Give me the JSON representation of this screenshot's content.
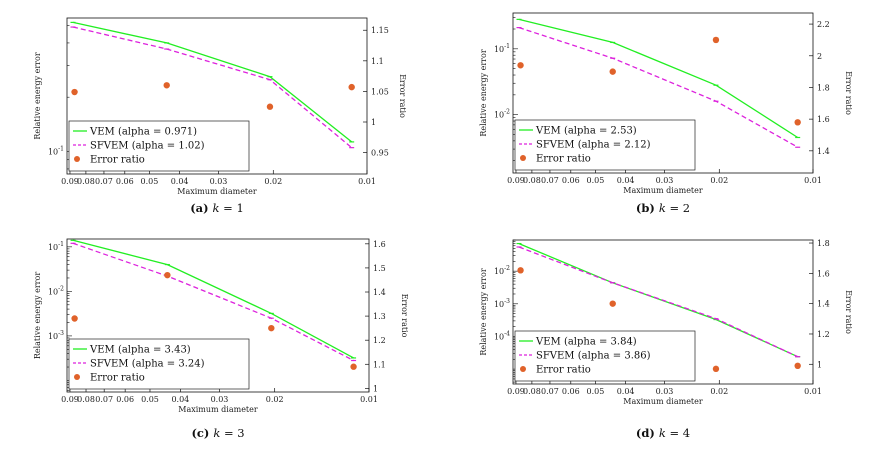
{
  "chart_data": [
    {
      "type": "line",
      "caption": {
        "letter": "(a)",
        "param": "k",
        "eq": "= 1"
      },
      "xlabel": "Maximum diameter",
      "ylabel": "Relative energy error",
      "y2label": "Error ratio",
      "x_ticks": [
        {
          "v": 0.09,
          "l": "0.09"
        },
        {
          "v": 0.08,
          "l": "0.08"
        },
        {
          "v": 0.07,
          "l": "0.07"
        },
        {
          "v": 0.06,
          "l": "0.06"
        },
        {
          "v": 0.05,
          "l": "0.05"
        },
        {
          "v": 0.04,
          "l": "0.04"
        },
        {
          "v": 0.03,
          "l": "0.03"
        },
        {
          "v": 0.02,
          "l": "0.02"
        },
        {
          "v": 0.01,
          "l": "0.01"
        }
      ],
      "xlim": [
        0.092,
        0.01
      ],
      "ylim": [
        0.075,
        0.55
      ],
      "y_ticks": [
        {
          "v": 0.1,
          "l": "10-1"
        }
      ],
      "y2lim": [
        0.915,
        1.17
      ],
      "y2_ticks": [
        {
          "v": 0.95,
          "l": "0.95"
        },
        {
          "v": 1.0,
          "l": "1"
        },
        {
          "v": 1.05,
          "l": "1.05"
        },
        {
          "v": 1.1,
          "l": "1.1"
        },
        {
          "v": 1.15,
          "l": "1.15"
        }
      ],
      "series": [
        {
          "name": "VEM (alpha = 0.971)",
          "color": "#22ee22",
          "dash": false,
          "x": [
            0.088,
            0.044,
            0.0205,
            0.0112
          ],
          "y": [
            0.52,
            0.4,
            0.26,
            0.113
          ]
        },
        {
          "name": "SFVEM (alpha = 1.02)",
          "color": "#dd22dd",
          "dash": true,
          "x": [
            0.088,
            0.044,
            0.0205,
            0.0112
          ],
          "y": [
            0.49,
            0.37,
            0.25,
            0.105
          ]
        }
      ],
      "ratio": {
        "name": "Error ratio",
        "color": "#e0622a",
        "x": [
          0.087,
          0.044,
          0.0205,
          0.0112
        ],
        "y": [
          1.049,
          1.06,
          1.025,
          1.057
        ]
      }
    },
    {
      "type": "line",
      "caption": {
        "letter": "(b)",
        "param": "k",
        "eq": "= 2"
      },
      "xlabel": "Maximum diameter",
      "ylabel": "Relative energy error",
      "y2label": "Error ratio",
      "x_ticks": [
        {
          "v": 0.09,
          "l": "0.09"
        },
        {
          "v": 0.08,
          "l": "0.08"
        },
        {
          "v": 0.07,
          "l": "0.07"
        },
        {
          "v": 0.06,
          "l": "0.06"
        },
        {
          "v": 0.05,
          "l": "0.05"
        },
        {
          "v": 0.04,
          "l": "0.04"
        },
        {
          "v": 0.03,
          "l": "0.03"
        },
        {
          "v": 0.02,
          "l": "0.02"
        },
        {
          "v": 0.01,
          "l": "0.01"
        }
      ],
      "xlim": [
        0.092,
        0.01
      ],
      "ylim": [
        0.0013,
        0.35
      ],
      "y_ticks": [
        {
          "v": 0.1,
          "l": "10-1"
        },
        {
          "v": 0.01,
          "l": "10-2"
        }
      ],
      "y2lim": [
        1.26,
        2.27
      ],
      "y2_ticks": [
        {
          "v": 1.4,
          "l": "1.4"
        },
        {
          "v": 1.6,
          "l": "1.6"
        },
        {
          "v": 1.8,
          "l": "1.8"
        },
        {
          "v": 2.0,
          "l": "2"
        },
        {
          "v": 2.2,
          "l": "2.2"
        }
      ],
      "series": [
        {
          "name": "VEM (alpha = 2.53)",
          "color": "#22ee22",
          "dash": false,
          "x": [
            0.088,
            0.044,
            0.0205,
            0.0112
          ],
          "y": [
            0.28,
            0.125,
            0.028,
            0.0045
          ]
        },
        {
          "name": "SFVEM (alpha = 2.12)",
          "color": "#dd22dd",
          "dash": true,
          "x": [
            0.088,
            0.044,
            0.0205,
            0.0112
          ],
          "y": [
            0.21,
            0.072,
            0.016,
            0.0032
          ]
        }
      ],
      "ratio": {
        "name": "Error ratio",
        "color": "#e0622a",
        "x": [
          0.087,
          0.044,
          0.0205,
          0.0112
        ],
        "y": [
          1.94,
          1.9,
          2.1,
          1.58
        ]
      }
    },
    {
      "type": "line",
      "caption": {
        "letter": "(c)",
        "param": "k",
        "eq": "= 3"
      },
      "xlabel": "Maximum diameter",
      "ylabel": "Relative energy error",
      "y2label": "Error ratio",
      "x_ticks": [
        {
          "v": 0.09,
          "l": "0.09"
        },
        {
          "v": 0.08,
          "l": "0.08"
        },
        {
          "v": 0.07,
          "l": "0.07"
        },
        {
          "v": 0.06,
          "l": "0.06"
        },
        {
          "v": 0.05,
          "l": "0.05"
        },
        {
          "v": 0.04,
          "l": "0.04"
        },
        {
          "v": 0.03,
          "l": "0.03"
        },
        {
          "v": 0.02,
          "l": "0.02"
        },
        {
          "v": 0.01,
          "l": "0.01"
        }
      ],
      "xlim": [
        0.092,
        0.01
      ],
      "ylim": [
        5.5e-05,
        0.15
      ],
      "y_ticks": [
        {
          "v": 0.1,
          "l": "10-1"
        },
        {
          "v": 0.01,
          "l": "10-2"
        },
        {
          "v": 0.001,
          "l": "10-3"
        }
      ],
      "y2lim": [
        0.985,
        1.62
      ],
      "y2_ticks": [
        {
          "v": 1.0,
          "l": "1"
        },
        {
          "v": 1.1,
          "l": "1.1"
        },
        {
          "v": 1.2,
          "l": "1.2"
        },
        {
          "v": 1.3,
          "l": "1.3"
        },
        {
          "v": 1.4,
          "l": "1.4"
        },
        {
          "v": 1.5,
          "l": "1.5"
        },
        {
          "v": 1.6,
          "l": "1.6"
        }
      ],
      "series": [
        {
          "name": "VEM (alpha = 3.43)",
          "color": "#22ee22",
          "dash": false,
          "x": [
            0.088,
            0.044,
            0.0205,
            0.0112
          ],
          "y": [
            0.14,
            0.04,
            0.0032,
            0.00032
          ]
        },
        {
          "name": "SFVEM (alpha = 3.24)",
          "color": "#dd22dd",
          "dash": true,
          "x": [
            0.088,
            0.044,
            0.0205,
            0.0112
          ],
          "y": [
            0.12,
            0.022,
            0.0025,
            0.00028
          ]
        }
      ],
      "ratio": {
        "name": "Error ratio",
        "color": "#e0622a",
        "x": [
          0.087,
          0.044,
          0.0205,
          0.0112
        ],
        "y": [
          1.29,
          1.47,
          1.25,
          1.09
        ]
      }
    },
    {
      "type": "line",
      "caption": {
        "letter": "(d)",
        "param": "k",
        "eq": "= 4"
      },
      "xlabel": "Maximum diameter",
      "ylabel": "Relative energy error",
      "y2label": "Error ratio",
      "x_ticks": [
        {
          "v": 0.09,
          "l": "0.09"
        },
        {
          "v": 0.08,
          "l": "0.08"
        },
        {
          "v": 0.07,
          "l": "0.07"
        },
        {
          "v": 0.06,
          "l": "0.06"
        },
        {
          "v": 0.05,
          "l": "0.05"
        },
        {
          "v": 0.04,
          "l": "0.04"
        },
        {
          "v": 0.03,
          "l": "0.03"
        },
        {
          "v": 0.02,
          "l": "0.02"
        },
        {
          "v": 0.01,
          "l": "0.01"
        }
      ],
      "xlim": [
        0.092,
        0.01
      ],
      "ylim": [
        3.5e-06,
        0.09
      ],
      "y_ticks": [
        {
          "v": 0.01,
          "l": "10-2"
        },
        {
          "v": 0.001,
          "l": "10-3"
        },
        {
          "v": 0.0001,
          "l": "10-4"
        }
      ],
      "y2lim": [
        0.87,
        1.82
      ],
      "y2_ticks": [
        {
          "v": 1.0,
          "l": "1"
        },
        {
          "v": 1.2,
          "l": "1.2"
        },
        {
          "v": 1.4,
          "l": "1.4"
        },
        {
          "v": 1.6,
          "l": "1.6"
        },
        {
          "v": 1.8,
          "l": "1.8"
        }
      ],
      "series": [
        {
          "name": "VEM (alpha = 3.84)",
          "color": "#22ee22",
          "dash": false,
          "x": [
            0.088,
            0.044,
            0.0205,
            0.0112
          ],
          "y": [
            0.07,
            0.0044,
            0.00033,
            2.4e-05
          ]
        },
        {
          "name": "SFVEM (alpha = 3.86)",
          "color": "#dd22dd",
          "dash": true,
          "x": [
            0.088,
            0.044,
            0.0205,
            0.0112
          ],
          "y": [
            0.055,
            0.0044,
            0.00035,
            2.4e-05
          ]
        }
      ],
      "ratio": {
        "name": "Error ratio",
        "color": "#e0622a",
        "x": [
          0.087,
          0.044,
          0.0205,
          0.0112
        ],
        "y": [
          1.62,
          1.4,
          0.97,
          0.99
        ]
      }
    }
  ]
}
